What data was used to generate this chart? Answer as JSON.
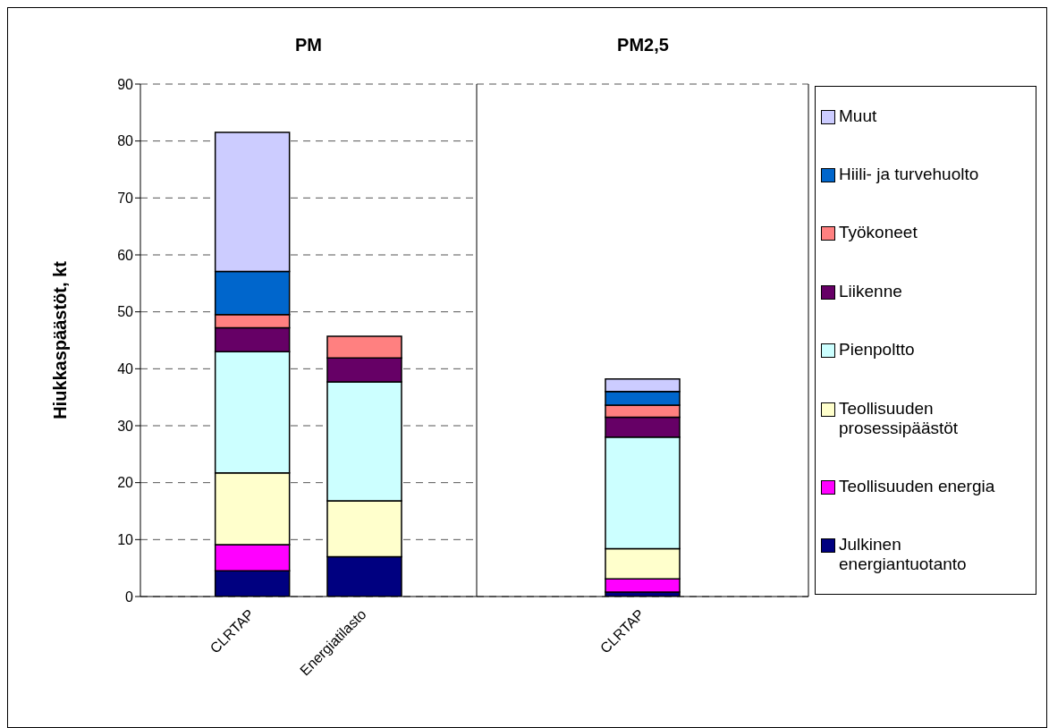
{
  "chart_data": [
    {
      "type": "bar",
      "title": "PM",
      "ylabel": "Hiukkaspäästöt, kt",
      "categories": [
        "CLRTAP",
        "Energiatilasto"
      ],
      "stacked": true,
      "ylim": [
        0,
        90
      ],
      "yticks": [
        0,
        10,
        20,
        30,
        40,
        50,
        60,
        70,
        80,
        90
      ],
      "grid": "y",
      "legend": false,
      "series": [
        {
          "color": "#000080",
          "values": [
            4.5,
            7.0
          ]
        },
        {
          "color": "#ff00ff",
          "values": [
            4.6,
            null
          ]
        },
        {
          "color": "#ffffcc",
          "values": [
            12.6,
            9.8
          ]
        },
        {
          "color": "#ccffff",
          "values": [
            21.3,
            20.9
          ]
        },
        {
          "color": "#660066",
          "values": [
            4.2,
            4.2
          ]
        },
        {
          "color": "#ff8080",
          "values": [
            2.3,
            3.8
          ]
        },
        {
          "color": "#0066cc",
          "values": [
            7.6,
            null
          ]
        },
        {
          "color": "#ccccff",
          "values": [
            24.4,
            null
          ]
        }
      ]
    },
    {
      "type": "bar",
      "title": "PM2,5",
      "categories": [
        "CLRTAP"
      ],
      "stacked": true,
      "ylim": [
        0,
        90
      ],
      "yticks": [
        0,
        10,
        20,
        30,
        40,
        50,
        60,
        70,
        80,
        90
      ],
      "grid": "y",
      "legend": "right",
      "tick_labels": "x",
      "series": [
        {
          "name": "Julkinen energiantuotanto",
          "color": "#000080",
          "values": [
            0.8
          ]
        },
        {
          "name": "Teollisuuden energia",
          "color": "#ff00ff",
          "values": [
            2.3
          ]
        },
        {
          "name": "Teollisuuden prosessipäästöt",
          "color": "#ffffcc",
          "values": [
            5.3
          ]
        },
        {
          "name": "Pienpoltto",
          "color": "#ccffff",
          "values": [
            19.6
          ]
        },
        {
          "name": "Liikenne",
          "color": "#660066",
          "values": [
            3.5
          ]
        },
        {
          "name": "Työkoneet",
          "color": "#ff8080",
          "values": [
            2.1
          ]
        },
        {
          "name": "Hiili- ja turvehuolto",
          "color": "#0066cc",
          "values": [
            2.4
          ]
        },
        {
          "name": "Muut",
          "color": "#ccccff",
          "values": [
            2.2
          ]
        }
      ]
    }
  ]
}
